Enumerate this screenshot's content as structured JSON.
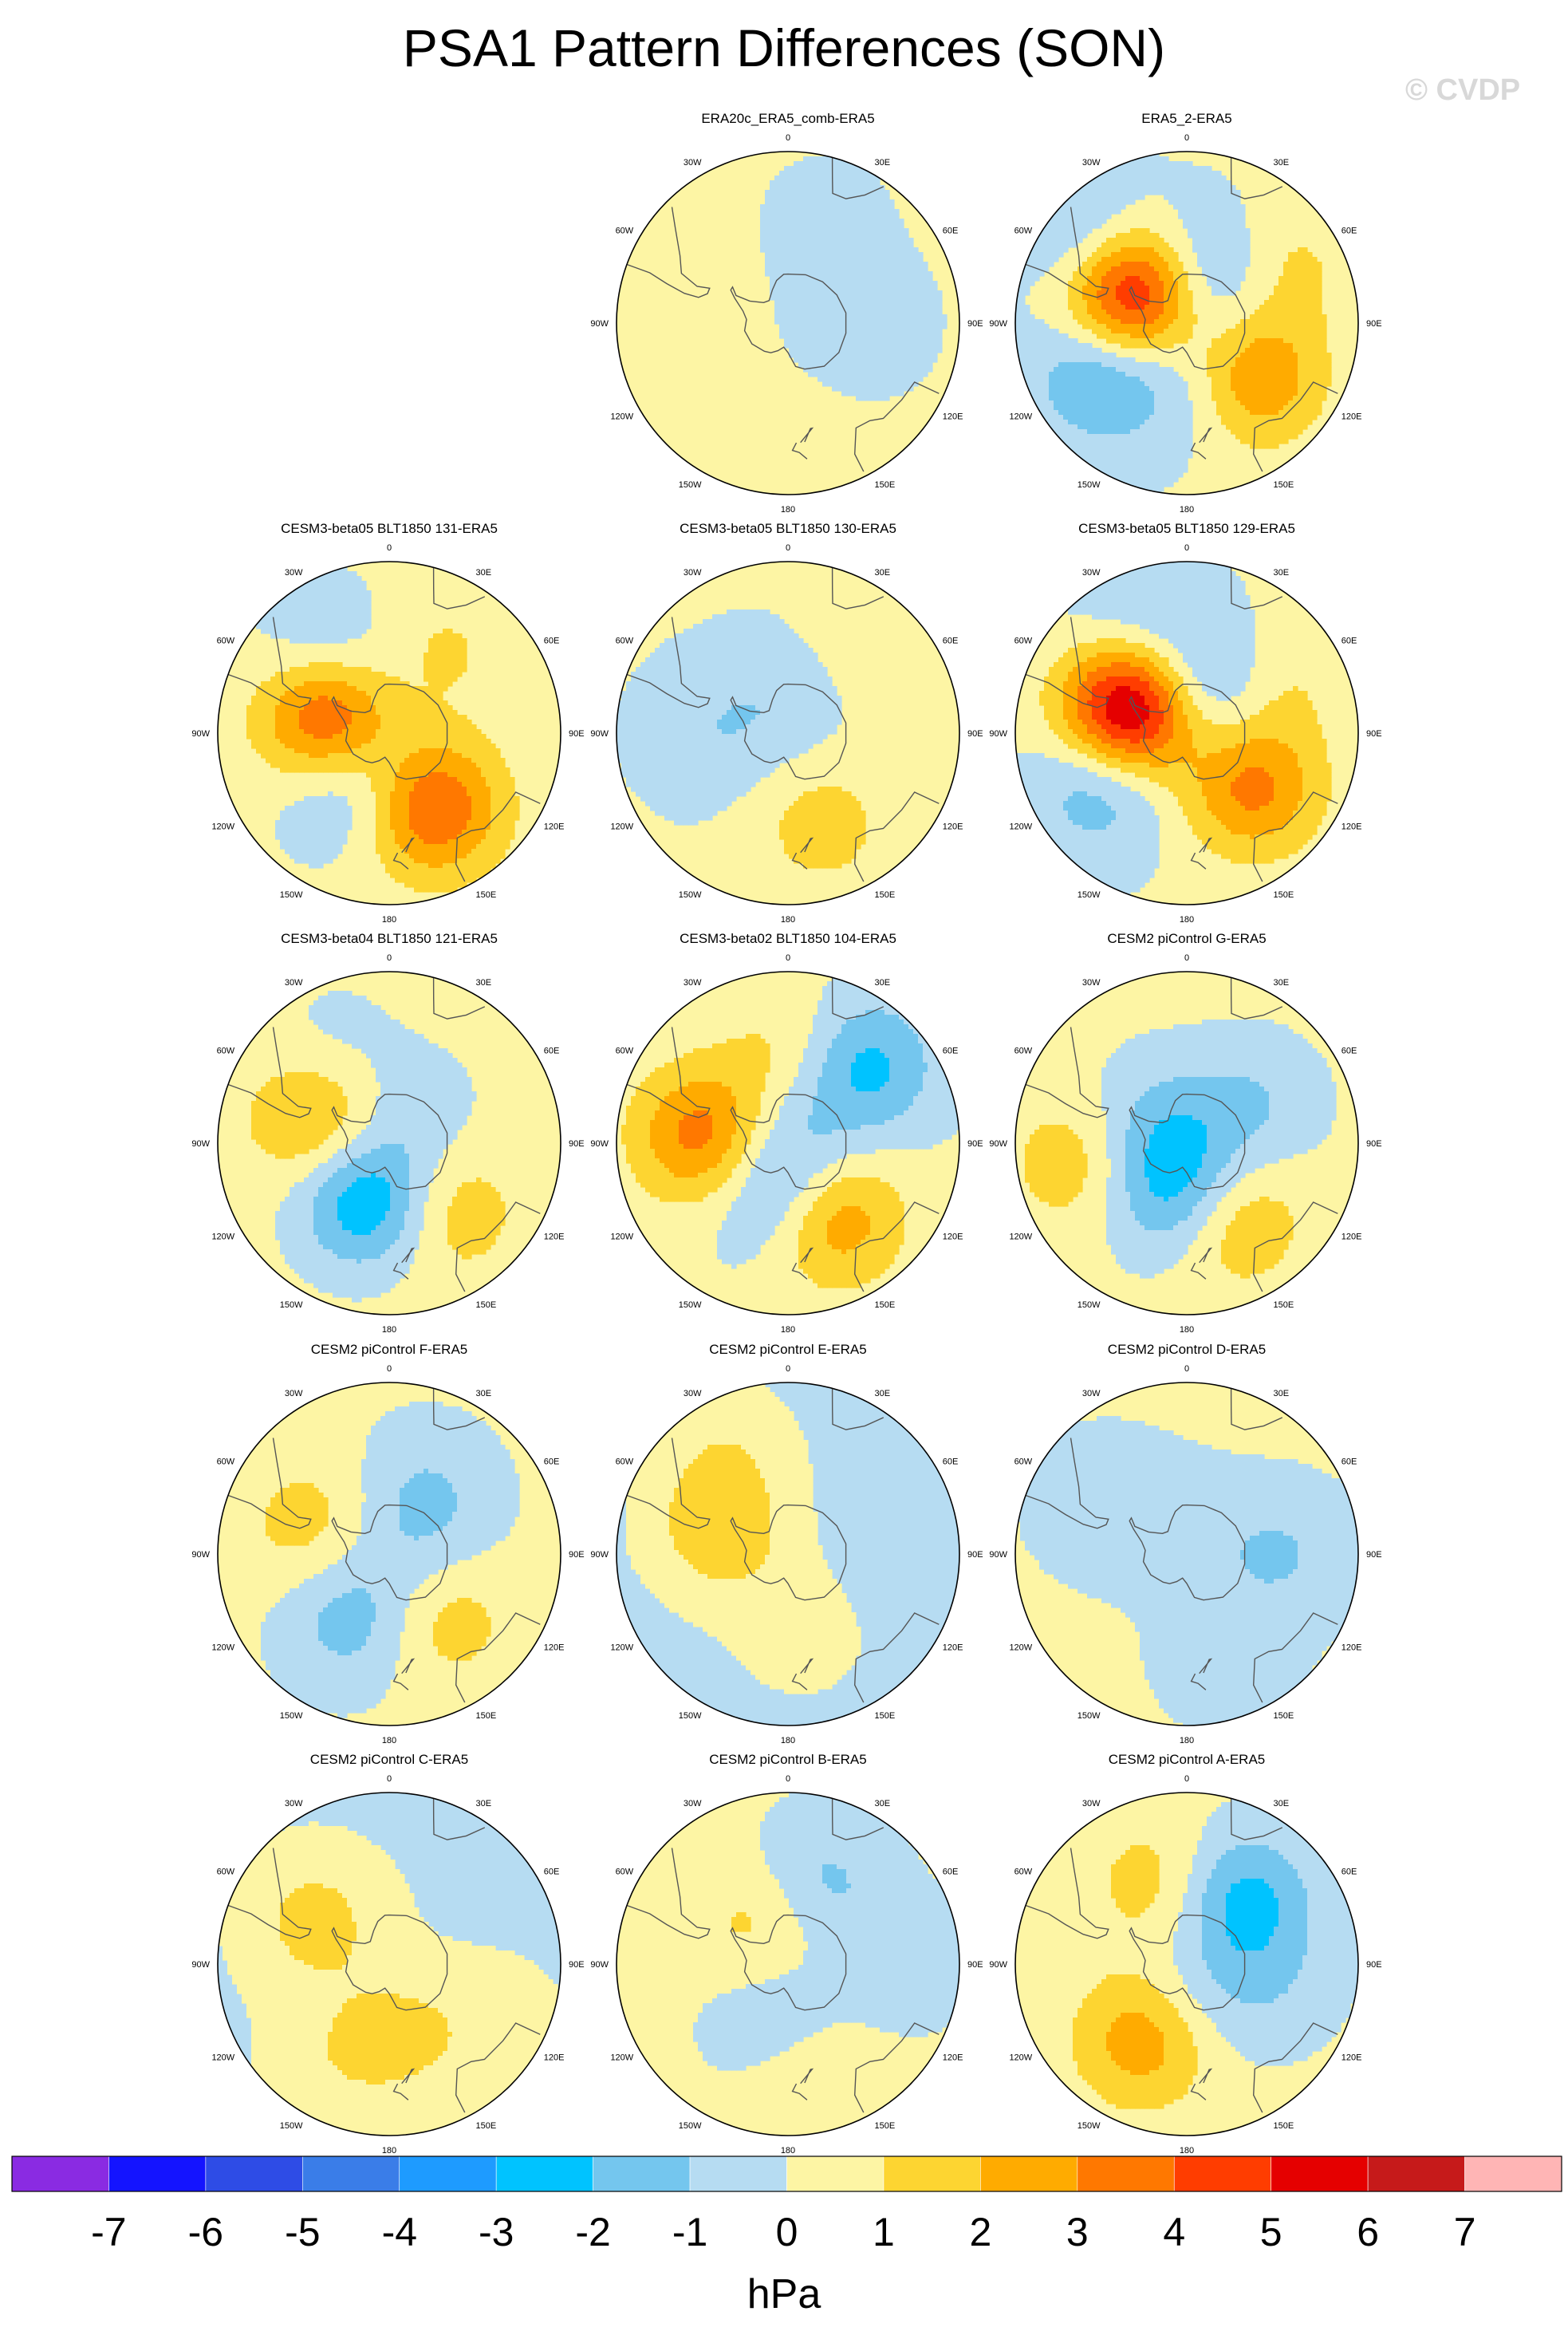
{
  "page": {
    "title": "PSA1 Pattern Differences (SON)",
    "watermark": "© CVDP"
  },
  "chart_data": {
    "type": "heatmap",
    "projection": "south-polar-stereographic",
    "variable": "PSA1 pattern difference",
    "units": "hPa",
    "lon_labels": [
      "0",
      "30E",
      "60E",
      "90E",
      "120E",
      "150E",
      "180",
      "150W",
      "120W",
      "90W",
      "60W",
      "30W"
    ],
    "colorbar": {
      "title": "hPa",
      "tick_labels": [
        "-7",
        "-6",
        "-5",
        "-4",
        "-3",
        "-2",
        "-1",
        "0",
        "1",
        "2",
        "3",
        "4",
        "5",
        "6",
        "7"
      ],
      "colors": [
        "#8a2be2",
        "#1414ff",
        "#2e4ce6",
        "#3a7de8",
        "#1e9bff",
        "#00c3ff",
        "#74c6ee",
        "#b6dcf2",
        "#fdf5a4",
        "#fdd531",
        "#ffab00",
        "#ff7800",
        "#ff3d00",
        "#e50000",
        "#c61a1a",
        "#ffb5b5"
      ]
    },
    "panels": [
      {
        "title": "ERA20c_ERA5_comb-ERA5",
        "row": 0,
        "col": 1,
        "base": 0.2,
        "anomalies": [
          {
            "lon": 90,
            "lat": -60,
            "amp": -0.9
          },
          {
            "lon": 20,
            "lat": -45,
            "amp": -0.5
          },
          {
            "lon": 180,
            "lat": -40,
            "amp": 0.3
          }
        ]
      },
      {
        "title": "ERA5_2-ERA5",
        "row": 0,
        "col": 2,
        "base": 0.1,
        "anomalies": [
          {
            "lon": -60,
            "lat": -65,
            "amp": 6.5
          },
          {
            "lon": -50,
            "lat": -40,
            "amp": -2.0
          },
          {
            "lon": -120,
            "lat": -50,
            "amp": -2.5
          },
          {
            "lon": 20,
            "lat": -70,
            "amp": -2.5
          },
          {
            "lon": 130,
            "lat": -55,
            "amp": 3.2
          },
          {
            "lon": 60,
            "lat": -45,
            "amp": 1.3
          },
          {
            "lon": 170,
            "lat": -65,
            "amp": -1.2
          }
        ]
      },
      {
        "title": "CESM3-beta05 BLT1850 131-ERA5",
        "row": 1,
        "col": 0,
        "base": 0.2,
        "anomalies": [
          {
            "lon": -75,
            "lat": -65,
            "amp": 5.0
          },
          {
            "lon": 150,
            "lat": -55,
            "amp": 4.0
          },
          {
            "lon": -140,
            "lat": -65,
            "amp": -2.2
          },
          {
            "lon": -40,
            "lat": -50,
            "amp": -1.6
          },
          {
            "lon": 30,
            "lat": -55,
            "amp": 1.4
          },
          {
            "lon": 10,
            "lat": -70,
            "amp": -1.0
          }
        ]
      },
      {
        "title": "CESM3-beta05 BLT1850 130-ERA5",
        "row": 1,
        "col": 1,
        "base": 0.1,
        "anomalies": [
          {
            "lon": -90,
            "lat": -60,
            "amp": -0.9
          },
          {
            "lon": 160,
            "lat": -50,
            "amp": 1.4
          },
          {
            "lon": 40,
            "lat": -45,
            "amp": 0.6
          },
          {
            "lon": 0,
            "lat": -75,
            "amp": -0.8
          }
        ]
      },
      {
        "title": "CESM3-beta05 BLT1850 129-ERA5",
        "row": 1,
        "col": 2,
        "base": 0.1,
        "anomalies": [
          {
            "lon": -65,
            "lat": -65,
            "amp": 7.3
          },
          {
            "lon": 130,
            "lat": -55,
            "amp": 3.2
          },
          {
            "lon": -120,
            "lat": -50,
            "amp": -2.2
          },
          {
            "lon": 20,
            "lat": -70,
            "amp": -2.6
          },
          {
            "lon": -30,
            "lat": -45,
            "amp": -1.4
          },
          {
            "lon": 60,
            "lat": -50,
            "amp": 1.2
          }
        ]
      },
      {
        "title": "CESM3-beta04 BLT1850 121-ERA5",
        "row": 2,
        "col": 0,
        "base": 0.35,
        "anomalies": [
          {
            "lon": -160,
            "lat": -65,
            "amp": -3.5
          },
          {
            "lon": -70,
            "lat": -60,
            "amp": 2.2
          },
          {
            "lon": 140,
            "lat": -55,
            "amp": 1.6
          },
          {
            "lon": -30,
            "lat": -45,
            "amp": -0.8
          },
          {
            "lon": 40,
            "lat": -75,
            "amp": -1.0
          }
        ]
      },
      {
        "title": "CESM3-beta02 BLT1850 104-ERA5",
        "row": 2,
        "col": 1,
        "base": 0.15,
        "anomalies": [
          {
            "lon": -85,
            "lat": -55,
            "amp": 3.4
          },
          {
            "lon": 150,
            "lat": -55,
            "amp": 3.1
          },
          {
            "lon": -170,
            "lat": -70,
            "amp": -2.4
          },
          {
            "lon": 45,
            "lat": -45,
            "amp": -2.5
          },
          {
            "lon": 0,
            "lat": -55,
            "amp": 1.3
          },
          {
            "lon": 30,
            "lat": -80,
            "amp": -1.0
          }
        ]
      },
      {
        "title": "CESM2 piControl G-ERA5",
        "row": 2,
        "col": 2,
        "base": 0.25,
        "anomalies": [
          {
            "lon": -170,
            "lat": -70,
            "amp": -3.0
          },
          {
            "lon": -100,
            "lat": -45,
            "amp": 1.5
          },
          {
            "lon": 150,
            "lat": -55,
            "amp": 2.2
          },
          {
            "lon": 60,
            "lat": -60,
            "amp": -1.3
          },
          {
            "lon": -60,
            "lat": -75,
            "amp": -1.4
          }
        ]
      },
      {
        "title": "CESM2 piControl F-ERA5",
        "row": 3,
        "col": 0,
        "base": 0.2,
        "anomalies": [
          {
            "lon": -150,
            "lat": -60,
            "amp": -1.8
          },
          {
            "lon": -70,
            "lat": -55,
            "amp": 1.3
          },
          {
            "lon": 140,
            "lat": -55,
            "amp": 1.4
          },
          {
            "lon": 30,
            "lat": -60,
            "amp": -1.0
          },
          {
            "lon": 60,
            "lat": -75,
            "amp": -0.8
          }
        ]
      },
      {
        "title": "CESM2 piControl E-ERA5",
        "row": 3,
        "col": 1,
        "base": -0.3,
        "anomalies": [
          {
            "lon": -70,
            "lat": -60,
            "amp": 2.0
          },
          {
            "lon": -30,
            "lat": -40,
            "amp": 0.9
          },
          {
            "lon": 170,
            "lat": -60,
            "amp": 0.8
          },
          {
            "lon": 90,
            "lat": -45,
            "amp": -0.4
          }
        ]
      },
      {
        "title": "CESM2 piControl D-ERA5",
        "row": 3,
        "col": 2,
        "base": 0.2,
        "anomalies": [
          {
            "lon": 90,
            "lat": -50,
            "amp": -1.2
          },
          {
            "lon": -60,
            "lat": -50,
            "amp": -1.0
          },
          {
            "lon": 160,
            "lat": -45,
            "amp": -0.8
          },
          {
            "lon": 0,
            "lat": -80,
            "amp": -0.7
          }
        ]
      },
      {
        "title": "CESM2 piControl C-ERA5",
        "row": 4,
        "col": 0,
        "base": -0.2,
        "anomalies": [
          {
            "lon": -60,
            "lat": -55,
            "amp": 1.6
          },
          {
            "lon": 170,
            "lat": -60,
            "amp": 1.3
          },
          {
            "lon": -150,
            "lat": -45,
            "amp": 0.8
          },
          {
            "lon": 120,
            "lat": -40,
            "amp": 0.6
          }
        ]
      },
      {
        "title": "CESM2 piControl B-ERA5",
        "row": 4,
        "col": 1,
        "base": 0.2,
        "anomalies": [
          {
            "lon": 20,
            "lat": -55,
            "amp": -1.6
          },
          {
            "lon": -30,
            "lat": -70,
            "amp": 1.4
          },
          {
            "lon": -170,
            "lat": -65,
            "amp": -1.3
          },
          {
            "lon": 170,
            "lat": -45,
            "amp": 1.1
          },
          {
            "lon": 90,
            "lat": -45,
            "amp": -0.8
          }
        ]
      },
      {
        "title": "CESM2 piControl A-ERA5",
        "row": 4,
        "col": 2,
        "base": 0.2,
        "anomalies": [
          {
            "lon": 40,
            "lat": -55,
            "amp": -2.6
          },
          {
            "lon": -150,
            "lat": -55,
            "amp": 2.6
          },
          {
            "lon": -20,
            "lat": -55,
            "amp": 1.4
          },
          {
            "lon": 100,
            "lat": -55,
            "amp": -0.9
          },
          {
            "lon": 170,
            "lat": -75,
            "amp": -0.9
          }
        ]
      }
    ]
  }
}
